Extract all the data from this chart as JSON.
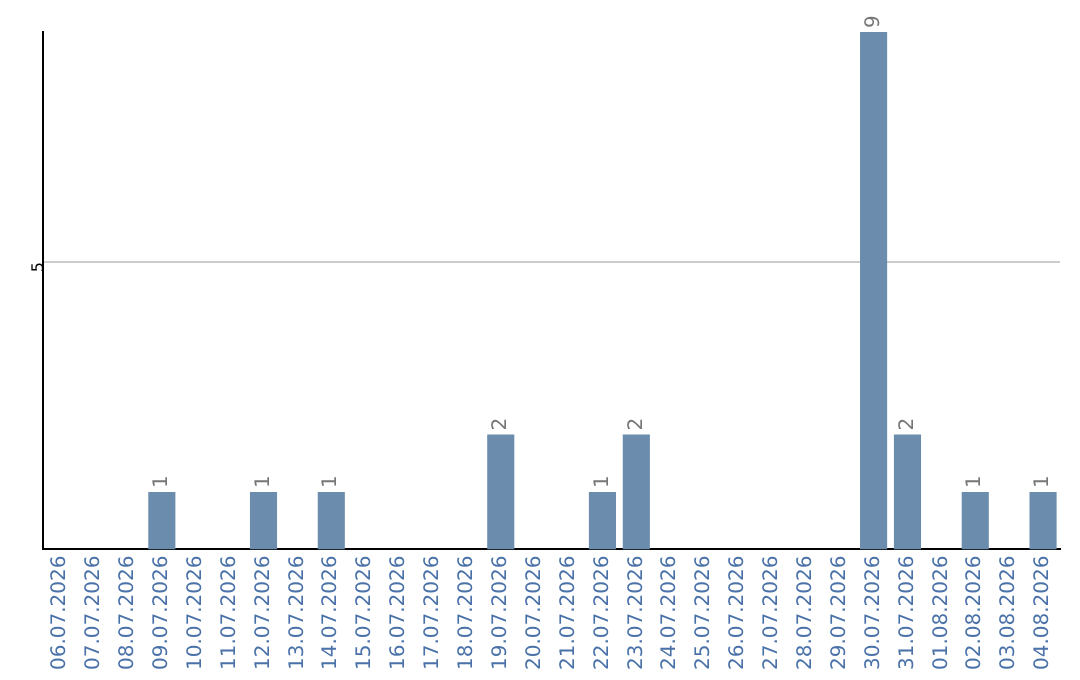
{
  "chart_data": {
    "type": "bar",
    "categories": [
      "06.07.2026",
      "07.07.2026",
      "08.07.2026",
      "09.07.2026",
      "10.07.2026",
      "11.07.2026",
      "12.07.2026",
      "13.07.2026",
      "14.07.2026",
      "15.07.2026",
      "16.07.2026",
      "17.07.2026",
      "18.07.2026",
      "19.07.2026",
      "20.07.2026",
      "21.07.2026",
      "22.07.2026",
      "23.07.2026",
      "24.07.2026",
      "25.07.2026",
      "26.07.2026",
      "27.07.2026",
      "28.07.2026",
      "29.07.2026",
      "30.07.2026",
      "31.07.2026",
      "01.08.2026",
      "02.08.2026",
      "03.08.2026",
      "04.08.2026"
    ],
    "values": [
      0,
      0,
      0,
      1,
      0,
      0,
      1,
      0,
      1,
      0,
      0,
      0,
      0,
      2,
      0,
      0,
      1,
      2,
      0,
      0,
      0,
      0,
      0,
      0,
      9,
      2,
      0,
      1,
      0,
      1
    ],
    "value_labels": [
      null,
      null,
      null,
      "1",
      null,
      null,
      "1",
      null,
      "1",
      null,
      null,
      null,
      null,
      "2",
      null,
      null,
      "1",
      "2",
      null,
      null,
      null,
      null,
      null,
      null,
      "9",
      "2",
      null,
      "1",
      null,
      "1"
    ],
    "color": "#6b8cad",
    "ylim": [
      0,
      9
    ],
    "yticks": [
      5
    ],
    "grid": "y",
    "legend": false
  }
}
